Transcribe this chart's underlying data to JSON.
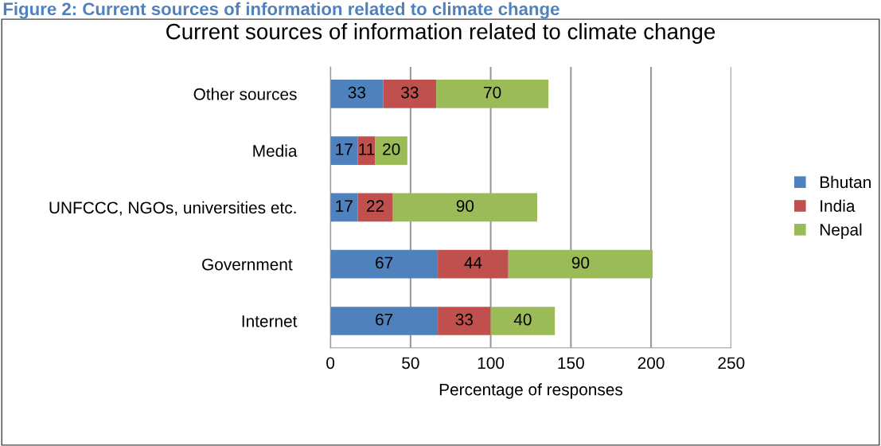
{
  "chart_data": {
    "type": "bar",
    "orientation": "horizontal",
    "stacked": true,
    "title": "Current sources of information related to climate change",
    "xlabel": "Percentage of responses",
    "annotations": [
      "Figure 2: Current sources of information related to climate change"
    ],
    "categories": [
      "Other sources",
      "Media",
      "UNFCCC, NGOs, universities etc.",
      "Government ",
      "Internet"
    ],
    "series": [
      {
        "name": "Bhutan",
        "color": "#4f81bd",
        "values": [
          33,
          17,
          17,
          67,
          67
        ]
      },
      {
        "name": "India",
        "color": "#c0504d",
        "values": [
          33,
          11,
          22,
          44,
          33
        ]
      },
      {
        "name": "Nepal",
        "color": "#9bbb59",
        "values": [
          70,
          20,
          90,
          90,
          40
        ]
      }
    ],
    "xlim": [
      0,
      250
    ],
    "xticks": [
      0,
      50,
      100,
      150,
      200,
      250
    ],
    "grid": "x",
    "legend": "right",
    "data_labels": true
  }
}
